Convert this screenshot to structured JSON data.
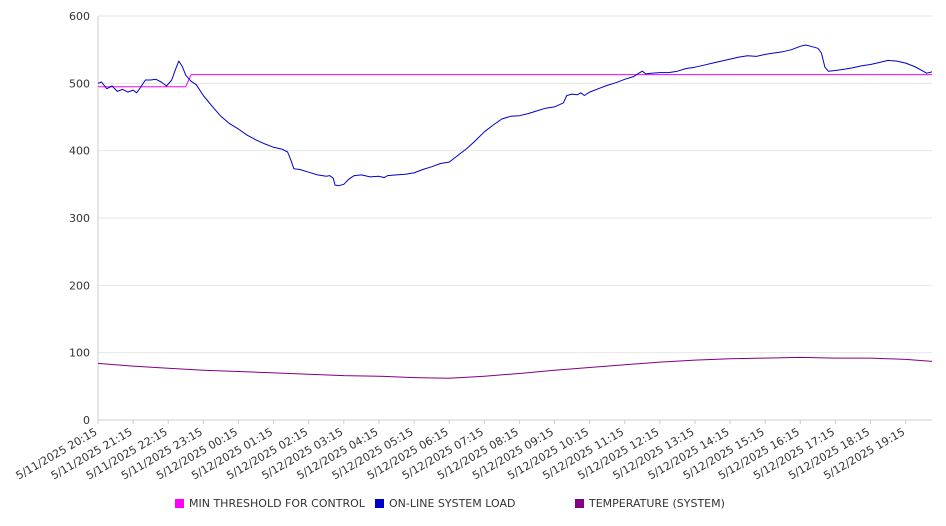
{
  "chart_data": {
    "type": "line",
    "title": "",
    "xlabel": "",
    "ylabel": "",
    "ylim": [
      0,
      600
    ],
    "yticks": [
      "0",
      "100",
      "200",
      "300",
      "400",
      "500",
      "600"
    ],
    "grid": true,
    "legend_position": "bottom",
    "categories": [
      "5/11/2025 20:15",
      "5/11/2025 21:15",
      "5/11/2025 22:15",
      "5/11/2025 23:15",
      "5/12/2025 00:15",
      "5/12/2025 01:15",
      "5/12/2025 02:15",
      "5/12/2025 03:15",
      "5/12/2025 04:15",
      "5/12/2025 05:15",
      "5/12/2025 06:15",
      "5/12/2025 07:15",
      "5/12/2025 08:15",
      "5/12/2025 09:15",
      "5/12/2025 10:15",
      "5/12/2025 11:15",
      "5/12/2025 12:15",
      "5/12/2025 13:15",
      "5/12/2025 14:15",
      "5/12/2025 15:15",
      "5/12/2025 16:15",
      "5/12/2025 17:15",
      "5/12/2025 18:15",
      "5/12/2025 19:15"
    ],
    "x_range_hours": [
      0,
      23.75
    ],
    "series": [
      {
        "name": "MIN THRESHOLD FOR CONTROL",
        "color": "#ff00ff",
        "points": [
          [
            0,
            495
          ],
          [
            2.5,
            495
          ],
          [
            2.65,
            513
          ],
          [
            23.75,
            513
          ]
        ]
      },
      {
        "name": "ON-LINE SYSTEM LOAD",
        "color": "#0000cc",
        "points": [
          [
            0,
            500
          ],
          [
            0.1,
            502
          ],
          [
            0.25,
            492
          ],
          [
            0.4,
            496
          ],
          [
            0.55,
            488
          ],
          [
            0.7,
            491
          ],
          [
            0.85,
            487
          ],
          [
            1.0,
            490
          ],
          [
            1.1,
            486
          ],
          [
            1.2,
            493
          ],
          [
            1.35,
            505
          ],
          [
            1.5,
            505
          ],
          [
            1.65,
            506
          ],
          [
            1.8,
            502
          ],
          [
            1.95,
            496
          ],
          [
            2.1,
            505
          ],
          [
            2.2,
            520
          ],
          [
            2.3,
            533
          ],
          [
            2.4,
            525
          ],
          [
            2.5,
            512
          ],
          [
            2.65,
            503
          ],
          [
            2.8,
            498
          ],
          [
            3.0,
            482
          ],
          [
            3.25,
            466
          ],
          [
            3.5,
            451
          ],
          [
            3.75,
            440
          ],
          [
            4.0,
            432
          ],
          [
            4.25,
            423
          ],
          [
            4.5,
            416
          ],
          [
            4.75,
            410
          ],
          [
            5.0,
            405
          ],
          [
            5.25,
            402
          ],
          [
            5.4,
            398
          ],
          [
            5.5,
            385
          ],
          [
            5.58,
            373
          ],
          [
            5.75,
            372
          ],
          [
            6.0,
            368
          ],
          [
            6.25,
            364
          ],
          [
            6.5,
            362
          ],
          [
            6.6,
            363
          ],
          [
            6.7,
            359
          ],
          [
            6.75,
            349
          ],
          [
            6.85,
            348
          ],
          [
            7.0,
            350
          ],
          [
            7.15,
            358
          ],
          [
            7.3,
            363
          ],
          [
            7.5,
            364
          ],
          [
            7.75,
            361
          ],
          [
            8.0,
            362
          ],
          [
            8.15,
            360
          ],
          [
            8.25,
            363
          ],
          [
            8.5,
            364
          ],
          [
            8.75,
            365
          ],
          [
            9.0,
            367
          ],
          [
            9.25,
            372
          ],
          [
            9.5,
            376
          ],
          [
            9.75,
            381
          ],
          [
            10.0,
            383
          ],
          [
            10.25,
            393
          ],
          [
            10.5,
            403
          ],
          [
            10.75,
            415
          ],
          [
            11.0,
            428
          ],
          [
            11.25,
            438
          ],
          [
            11.5,
            447
          ],
          [
            11.75,
            451
          ],
          [
            12.0,
            452
          ],
          [
            12.25,
            455
          ],
          [
            12.5,
            459
          ],
          [
            12.75,
            463
          ],
          [
            13.0,
            465
          ],
          [
            13.25,
            471
          ],
          [
            13.35,
            482
          ],
          [
            13.5,
            484
          ],
          [
            13.65,
            483
          ],
          [
            13.75,
            486
          ],
          [
            13.85,
            482
          ],
          [
            14.0,
            487
          ],
          [
            14.25,
            492
          ],
          [
            14.5,
            497
          ],
          [
            14.75,
            501
          ],
          [
            15.0,
            506
          ],
          [
            15.25,
            510
          ],
          [
            15.4,
            515
          ],
          [
            15.5,
            518
          ],
          [
            15.6,
            514
          ],
          [
            15.75,
            515
          ],
          [
            16.0,
            516
          ],
          [
            16.25,
            516
          ],
          [
            16.5,
            518
          ],
          [
            16.75,
            522
          ],
          [
            17.0,
            524
          ],
          [
            17.25,
            527
          ],
          [
            17.5,
            530
          ],
          [
            17.75,
            533
          ],
          [
            18.0,
            536
          ],
          [
            18.25,
            539
          ],
          [
            18.5,
            541
          ],
          [
            18.75,
            540
          ],
          [
            19.0,
            543
          ],
          [
            19.25,
            545
          ],
          [
            19.5,
            547
          ],
          [
            19.75,
            550
          ],
          [
            20.0,
            555
          ],
          [
            20.15,
            557
          ],
          [
            20.3,
            555
          ],
          [
            20.5,
            552
          ],
          [
            20.6,
            545
          ],
          [
            20.7,
            524
          ],
          [
            20.8,
            518
          ],
          [
            21.0,
            519
          ],
          [
            21.25,
            521
          ],
          [
            21.5,
            523
          ],
          [
            21.75,
            526
          ],
          [
            22.0,
            528
          ],
          [
            22.25,
            531
          ],
          [
            22.5,
            534
          ],
          [
            22.75,
            533
          ],
          [
            23.0,
            530
          ],
          [
            23.25,
            525
          ],
          [
            23.5,
            518
          ],
          [
            23.6,
            515
          ],
          [
            23.75,
            517
          ]
        ]
      },
      {
        "name": "TEMPERATURE (SYSTEM)",
        "color": "#800080",
        "points": [
          [
            0,
            84
          ],
          [
            1,
            80
          ],
          [
            2,
            77
          ],
          [
            3,
            74
          ],
          [
            4,
            72
          ],
          [
            5,
            70
          ],
          [
            6,
            68
          ],
          [
            7,
            66
          ],
          [
            8,
            65
          ],
          [
            9,
            63
          ],
          [
            10,
            62
          ],
          [
            11,
            65
          ],
          [
            12,
            69
          ],
          [
            13,
            74
          ],
          [
            14,
            78
          ],
          [
            15,
            82
          ],
          [
            16,
            86
          ],
          [
            17,
            89
          ],
          [
            18,
            91
          ],
          [
            19,
            92
          ],
          [
            20,
            93
          ],
          [
            21,
            92
          ],
          [
            22,
            92
          ],
          [
            23,
            90
          ],
          [
            23.75,
            87
          ]
        ]
      }
    ]
  }
}
